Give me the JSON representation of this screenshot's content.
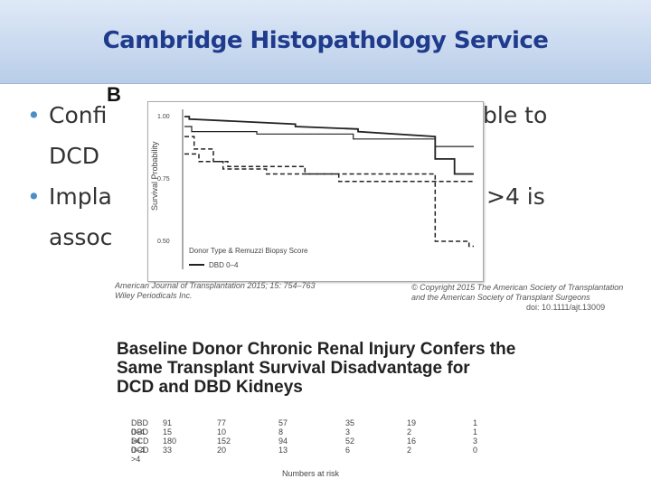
{
  "header": {
    "title": "Cambridge Histopathology Service"
  },
  "bullets": [
    {
      "lines": [
        "Confi",
        "DCD"
      ],
      "tail": "ble to"
    },
    {
      "lines": [
        "Impla",
        "assoc"
      ],
      "tail": ">4 is"
    }
  ],
  "figure": {
    "panel_label": "B",
    "ylabel": "Survival Probability",
    "yticks": [
      "1.00",
      "0.75",
      "0.50"
    ],
    "legend_title": "Donor Type & Remuzzi Biopsy Score",
    "legend_entry": "DBD 0–4",
    "source_left": [
      "American Journal of Transplantation 2015; 15: 754–763",
      "Wiley Periodicals Inc."
    ],
    "source_right": [
      "© Copyright 2015 The American Society of Transplantation",
      "and the American Society of Transplant Surgeons"
    ],
    "doi": "doi: 10.1111/ajt.13009"
  },
  "caption": [
    "Baseline Donor Chronic Renal Injury Confers the",
    "Same Transplant Survival Disadvantage for",
    "DCD and DBD Kidneys"
  ],
  "numbers_at_risk": {
    "rows": [
      {
        "label": "DBD 0–4",
        "values": [
          "91",
          "77",
          "57",
          "35",
          "19",
          "1"
        ]
      },
      {
        "label": "DBD >4",
        "values": [
          "15",
          "10",
          "8",
          "3",
          "2",
          "1"
        ]
      },
      {
        "label": "DCD 0–4",
        "values": [
          "180",
          "152",
          "94",
          "52",
          "16",
          "3"
        ]
      },
      {
        "label": "DCD >4",
        "values": [
          "33",
          "20",
          "13",
          "6",
          "2",
          "0"
        ]
      }
    ],
    "axis_label": "Numbers at risk"
  },
  "chart_data": {
    "type": "line",
    "title": "",
    "xlabel": "",
    "ylabel": "Survival Probability",
    "ylim": [
      0.45,
      1.0
    ],
    "xlim": [
      0,
      6
    ],
    "series": [
      {
        "name": "DBD 0–4",
        "style": "solid",
        "x": [
          0,
          0.1,
          0.1,
          2.3,
          2.3,
          3.6,
          3.6,
          5.2,
          5.2,
          5.6,
          5.6,
          6
        ],
        "y": [
          1.0,
          1.0,
          0.99,
          0.97,
          0.96,
          0.95,
          0.94,
          0.92,
          0.83,
          0.83,
          0.77,
          0.77
        ]
      },
      {
        "name": "DBD >4",
        "style": "dashed",
        "x": [
          0,
          0.2,
          0.2,
          0.6,
          0.6,
          0.9,
          0.9,
          2.5,
          2.5,
          5.2,
          5.2,
          5.9,
          5.9,
          6
        ],
        "y": [
          0.92,
          0.92,
          0.87,
          0.87,
          0.82,
          0.82,
          0.8,
          0.8,
          0.77,
          0.77,
          0.5,
          0.5,
          0.48,
          0.48
        ]
      },
      {
        "name": "DCD 0–4",
        "style": "solid-thin",
        "x": [
          0,
          0.15,
          0.15,
          1.5,
          1.5,
          3.5,
          3.5,
          5.2,
          5.2,
          6
        ],
        "y": [
          0.96,
          0.96,
          0.94,
          0.94,
          0.93,
          0.93,
          0.91,
          0.91,
          0.88,
          0.88
        ]
      },
      {
        "name": "DCD >4",
        "style": "dashed",
        "x": [
          0,
          0.3,
          0.3,
          0.8,
          0.8,
          1.7,
          1.7,
          3.2,
          3.2,
          6
        ],
        "y": [
          0.85,
          0.85,
          0.82,
          0.82,
          0.79,
          0.79,
          0.77,
          0.77,
          0.74,
          0.74
        ]
      }
    ]
  }
}
